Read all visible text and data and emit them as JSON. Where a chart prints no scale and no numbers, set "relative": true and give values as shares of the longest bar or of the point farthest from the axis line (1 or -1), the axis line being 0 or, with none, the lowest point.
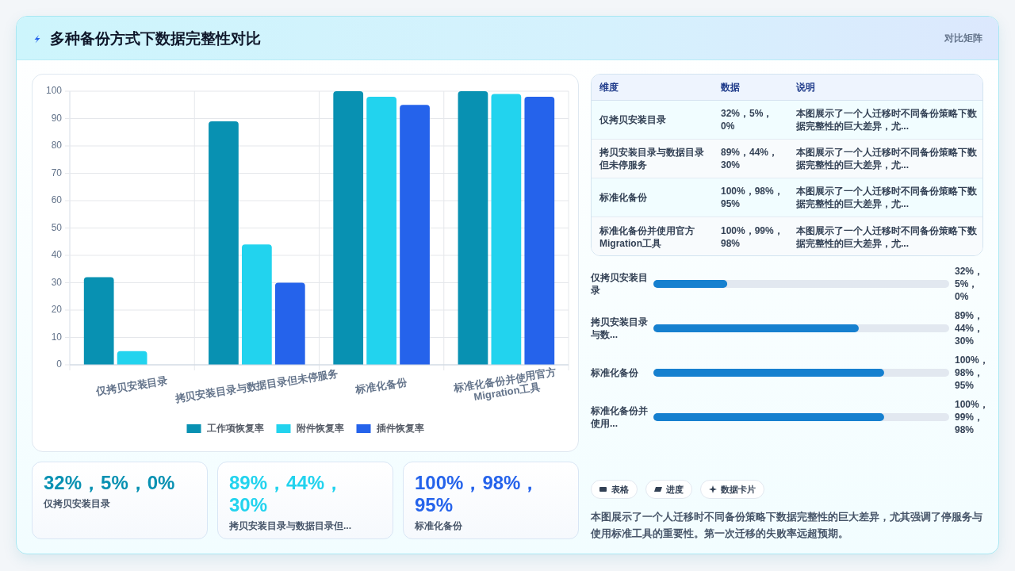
{
  "chart_data": [
    {
      "type": "other",
      "title": "多种备份方式下数据完整性对比",
      "annotations": [
        "对比矩阵"
      ]
    },
    {
      "type": "bar",
      "categories": [
        "仅拷贝安装目录",
        "拷贝安装目录与数据目录但未停服务",
        "标准化备份",
        "标准化备份并使用官方Migration工具"
      ],
      "series": [
        {
          "name": "工作项恢复率",
          "color": "#0891b2",
          "values": [
            32,
            89,
            100,
            100
          ]
        },
        {
          "name": "附件恢复率",
          "color": "#22d3ee",
          "values": [
            5,
            44,
            98,
            99
          ]
        },
        {
          "name": "插件恢复率",
          "color": "#2563eb",
          "values": [
            0,
            30,
            95,
            98
          ]
        }
      ],
      "ylim": [
        0,
        100
      ],
      "yticks": [
        0,
        10,
        20,
        30,
        40,
        50,
        60,
        70,
        80,
        90,
        100
      ],
      "grid": true,
      "legend": "bottom"
    },
    {
      "type": "other",
      "categories": [
        "维度",
        "数据",
        "说明"
      ],
      "cell_labels": [
        [
          "仅拷贝安装目录",
          "32%，5%，0%",
          "本图展示了一个人迁移时不同备份策略下数据完整性的巨大差异，尤..."
        ],
        [
          "拷贝安装目录与数据目录但未停服务",
          "89%，44%，30%",
          "本图展示了一个人迁移时不同备份策略下数据完整性的巨大差异，尤..."
        ],
        [
          "标准化备份",
          "100%，98%，95%",
          "本图展示了一个人迁移时不同备份策略下数据完整性的巨大差异，尤..."
        ],
        [
          "标准化备份并使用官方Migration工具",
          "100%，99%，98%",
          "本图展示了一个人迁移时不同备份策略下数据完整性的巨大差异，尤..."
        ]
      ]
    },
    {
      "type": "bar",
      "orientation": "horizontal",
      "relative": true,
      "categories": [
        "仅拷贝安装目录",
        "拷贝安装目录与数...",
        "标准化备份",
        "标准化备份并使用..."
      ],
      "values": [
        0.32,
        0.89,
        1,
        1
      ],
      "y2_categories": [
        "32%，5%，0%",
        "89%，44%，30%",
        "100%，98%，95%",
        "100%，99%，98%"
      ],
      "color": "#1680cf"
    },
    {
      "type": "other",
      "categories": [
        "仅拷贝安装目录",
        "拷贝安装目录与数据目录但...",
        "标准化备份"
      ],
      "value_labels": [
        "32%，5%，0%",
        "89%，44%，30%",
        "100%，98%，95%"
      ]
    },
    {
      "type": "other",
      "categories": [
        "表格",
        "进度",
        "数据卡片"
      ],
      "annotations": [
        "本图展示了一个人迁移时不同备份策略下数据完整性的巨大差异，尤其强调了停服务与使用标准工具的重要性。第一次迁移的失败率远超预期。"
      ]
    }
  ]
}
